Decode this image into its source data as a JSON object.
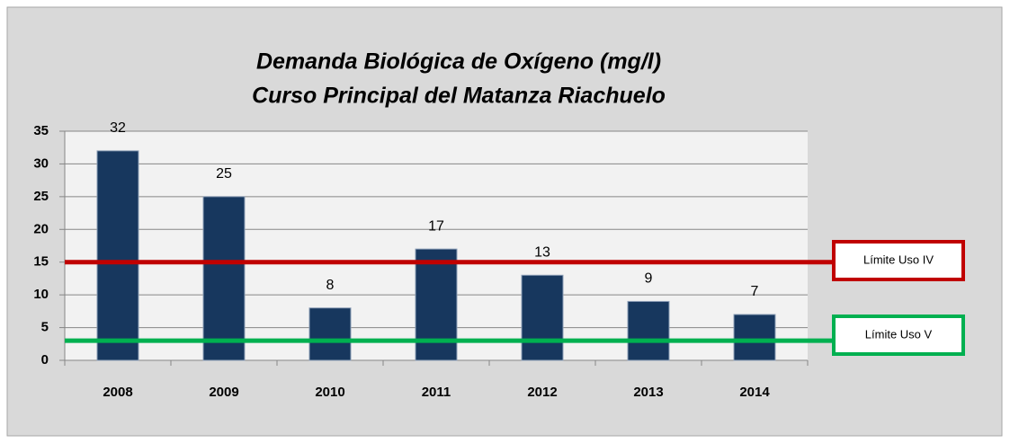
{
  "chart_data": {
    "type": "bar",
    "title": "Demanda Biológica de Oxígeno (mg/l)",
    "subtitle": "Curso Principal del Matanza Riachuelo",
    "categories": [
      "2008",
      "2009",
      "2010",
      "2011",
      "2012",
      "2013",
      "2014"
    ],
    "values": [
      32,
      25,
      8,
      17,
      13,
      9,
      7
    ],
    "color": "#17375e",
    "ylim": [
      0,
      35
    ],
    "yticks": [
      0,
      5,
      10,
      15,
      20,
      25,
      30,
      35
    ],
    "grid": true,
    "reference_lines": [
      {
        "label": "Límite Uso IV",
        "value": 15,
        "color": "#c00000"
      },
      {
        "label": "Límite Uso V",
        "value": 3,
        "color": "#00b050"
      }
    ]
  }
}
